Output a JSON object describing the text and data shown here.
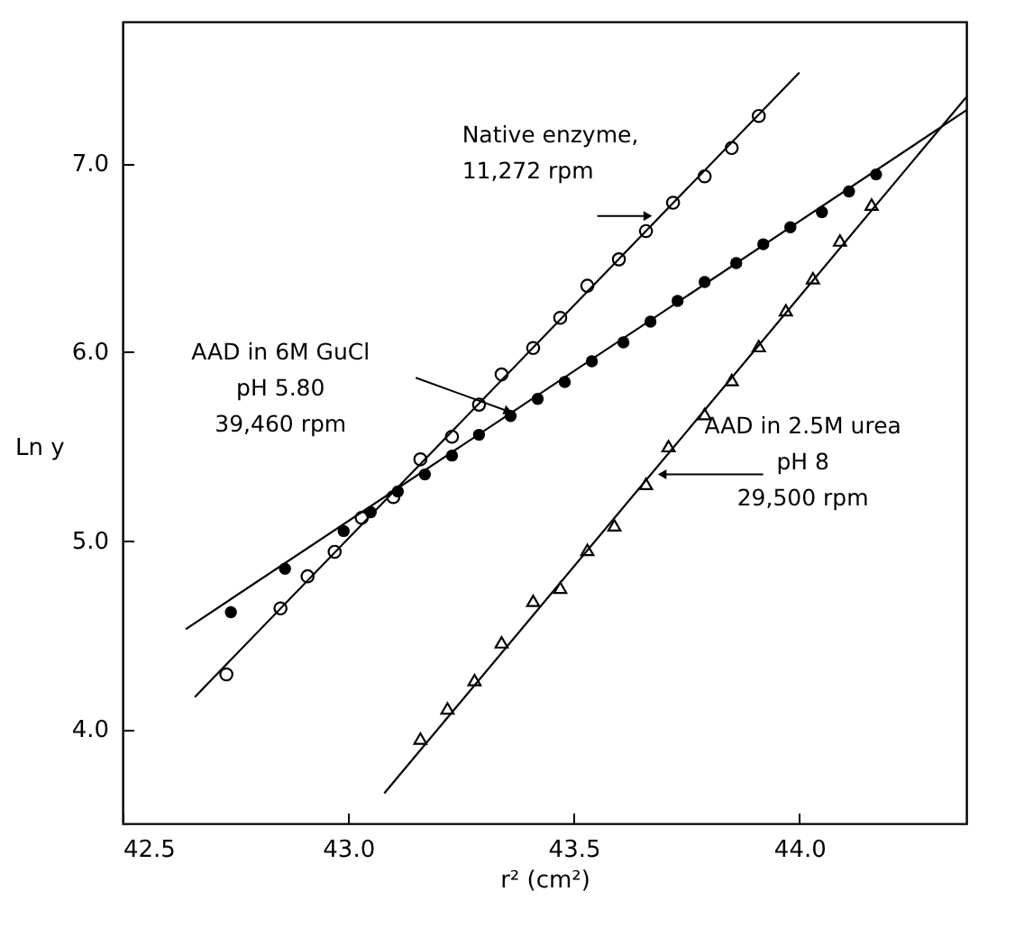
{
  "chart_data": {
    "type": "scatter",
    "xlabel": "r² (cm²)",
    "ylabel": "Ln y",
    "xlim": [
      42.5,
      44.37
    ],
    "ylim": [
      3.5,
      7.75
    ],
    "xticks": [
      42.5,
      {
        "value": 43.0,
        "label": "43.0"
      },
      43.5,
      {
        "value": 44.0,
        "label": "44.0"
      }
    ],
    "yticks": [
      {
        "value": 4.0,
        "label": "4.0"
      },
      {
        "value": 5.0,
        "label": "5.0"
      },
      {
        "value": 6.0,
        "label": "6.0"
      },
      {
        "value": 7.0,
        "label": "7.0"
      }
    ],
    "grid": false,
    "series": [
      {
        "marker": "circle",
        "color": "#000000",
        "x": [
          42.73,
          42.85,
          42.91,
          42.97,
          43.03,
          43.1,
          43.16,
          43.23,
          43.29,
          43.34,
          43.41,
          43.47,
          43.53,
          43.6,
          43.66,
          43.72,
          43.79,
          43.85,
          43.91
        ],
        "values": [
          4.29,
          4.64,
          4.81,
          4.94,
          5.12,
          5.23,
          5.43,
          5.55,
          5.72,
          5.88,
          6.02,
          6.18,
          6.35,
          6.49,
          6.64,
          6.79,
          6.93,
          7.08,
          7.25
        ]
      },
      {
        "marker": "circle",
        "color": "#000000",
        "x": [
          42.74,
          42.86,
          42.99,
          43.05,
          43.11,
          43.17,
          43.23,
          43.29,
          43.36,
          43.42,
          43.48,
          43.54,
          43.61,
          43.67,
          43.73,
          43.79,
          43.86,
          43.92,
          43.98,
          44.05,
          44.11,
          44.17
        ],
        "values": [
          4.62,
          4.85,
          5.05,
          5.15,
          5.26,
          5.35,
          5.45,
          5.56,
          5.66,
          5.75,
          5.84,
          5.95,
          6.05,
          6.16,
          6.27,
          6.37,
          6.47,
          6.57,
          6.66,
          6.74,
          6.85,
          6.94
        ]
      },
      {
        "marker": "triangle",
        "color": "#000000",
        "x": [
          43.16,
          43.22,
          43.28,
          43.34,
          43.41,
          43.47,
          43.53,
          43.59,
          43.66,
          43.71,
          43.79,
          43.85,
          43.91,
          43.97,
          44.03,
          44.09,
          44.16
        ],
        "values": [
          3.95,
          4.11,
          4.26,
          4.46,
          4.68,
          4.75,
          4.95,
          5.08,
          5.3,
          5.5,
          5.67,
          5.85,
          6.03,
          6.22,
          6.39,
          6.59,
          6.78
        ]
      },
      {
        "type": "line",
        "color": "#000000",
        "x": [
          42.66,
          44.0
        ],
        "values": [
          4.17,
          7.48
        ]
      },
      {
        "type": "line",
        "color": "#000000",
        "x": [
          42.64,
          44.37
        ],
        "values": [
          4.53,
          7.28
        ]
      },
      {
        "type": "line",
        "color": "#000000",
        "x": [
          43.08,
          44.37
        ],
        "values": [
          3.66,
          7.35
        ]
      }
    ],
    "annotations": [
      {
        "text": "Native enzyme,\n11,272 rpm",
        "x": 43.68,
        "y": 6.72
      },
      "AAD in 6M GuCl\npH 5.80\n39,460 rpm",
      {
        "text": "AAD in 2.5M urea\npH 8\n29,500 rpm",
        "x": 43.68,
        "y": 5.35
      }
    ]
  }
}
